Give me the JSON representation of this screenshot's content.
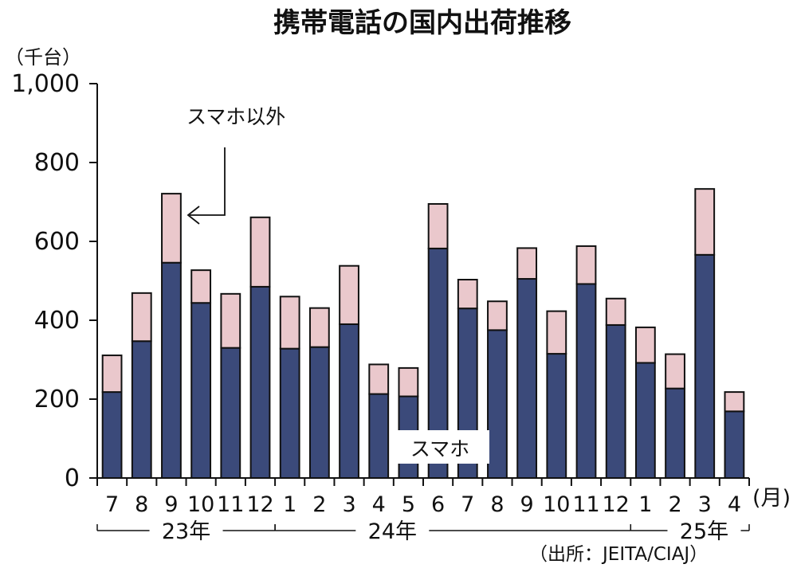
{
  "chart_data": {
    "type": "bar",
    "stacked": true,
    "title": "携帯電話の国内出荷推移",
    "unit_label": "（千台）",
    "ylim": [
      0,
      1000
    ],
    "yticks": [
      0,
      200,
      400,
      600,
      800,
      1000
    ],
    "ytick_labels": [
      "0",
      "200",
      "400",
      "600",
      "800",
      "1,000"
    ],
    "categories": [
      "7",
      "8",
      "9",
      "10",
      "11",
      "12",
      "1",
      "2",
      "3",
      "4",
      "5",
      "6",
      "7",
      "8",
      "9",
      "10",
      "11",
      "12",
      "1",
      "2",
      "3",
      "4"
    ],
    "x_unit_label": "(月)",
    "series": [
      {
        "name": "スマホ",
        "color": "#3b4a7a",
        "values": [
          218,
          347,
          546,
          444,
          330,
          485,
          328,
          332,
          390,
          213,
          207,
          582,
          430,
          375,
          505,
          315,
          492,
          388,
          292,
          227,
          566,
          169
        ]
      },
      {
        "name": "スマホ以外",
        "color": "#eac8cc",
        "values": [
          93,
          122,
          175,
          83,
          137,
          176,
          132,
          99,
          148,
          75,
          72,
          113,
          73,
          73,
          78,
          108,
          96,
          67,
          90,
          87,
          167,
          49
        ]
      }
    ],
    "year_groups": [
      {
        "label": "23年",
        "start": 0,
        "end": 5
      },
      {
        "label": "24年",
        "start": 6,
        "end": 17
      },
      {
        "label": "25年",
        "start": 18,
        "end": 21
      }
    ],
    "annotations": {
      "non_smartphone": "スマホ以外",
      "smartphone": "スマホ"
    },
    "source": "（出所：JEITA/CIAJ）",
    "grid": false,
    "legend": "none"
  }
}
